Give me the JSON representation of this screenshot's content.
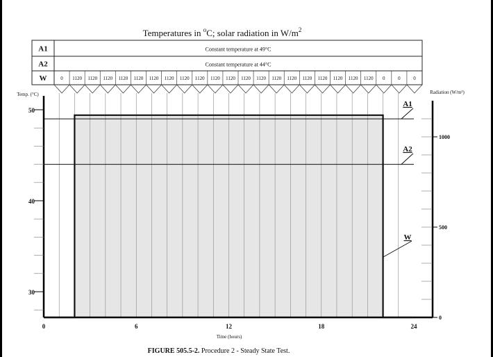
{
  "chart_data": {
    "type": "line",
    "title": "Temperatures in °C; solar radiation in W/m2",
    "title_parts": {
      "pre": "Temperatures in ",
      "sup1": "o",
      "mid": "C; solar radiation in W/m",
      "sup2": "2"
    },
    "table": {
      "rows": [
        {
          "label": "A1",
          "text": "Constant temperature at 49°C"
        },
        {
          "label": "A2",
          "text": "Constant temperature at 44°C"
        },
        {
          "label": "W",
          "values": [
            0,
            1120,
            1120,
            1120,
            1120,
            1120,
            1120,
            1120,
            1120,
            1120,
            1120,
            1120,
            1120,
            1120,
            1120,
            1120,
            1120,
            1120,
            1120,
            1120,
            1120,
            0,
            0,
            0
          ]
        }
      ]
    },
    "xlabel": "Time (hours)",
    "xlim": [
      0,
      24
    ],
    "xticks": [
      0,
      6,
      12,
      18,
      24
    ],
    "ylabel_left": "Temp. (°C)",
    "ylim_left": [
      27.2,
      50.5
    ],
    "yticks_left": [
      30,
      40,
      50
    ],
    "ylabel_right": "Radiation (W/m²)",
    "ylim_right": [
      0,
      1150
    ],
    "yticks_right": [
      0,
      500,
      1000
    ],
    "series": [
      {
        "name": "A1",
        "axis": "left",
        "x": [
          0,
          24
        ],
        "y": [
          49,
          49
        ]
      },
      {
        "name": "A2",
        "axis": "left",
        "x": [
          0,
          24
        ],
        "y": [
          44,
          44
        ]
      },
      {
        "name": "W",
        "axis": "right",
        "x": [
          0,
          2,
          2,
          22,
          22,
          24
        ],
        "y": [
          0,
          0,
          1120,
          1120,
          0,
          0
        ]
      }
    ],
    "grid": true
  },
  "caption": {
    "bold": "FIGURE 505.5-2.",
    "text": "  Procedure 2 - Steady State Test."
  }
}
